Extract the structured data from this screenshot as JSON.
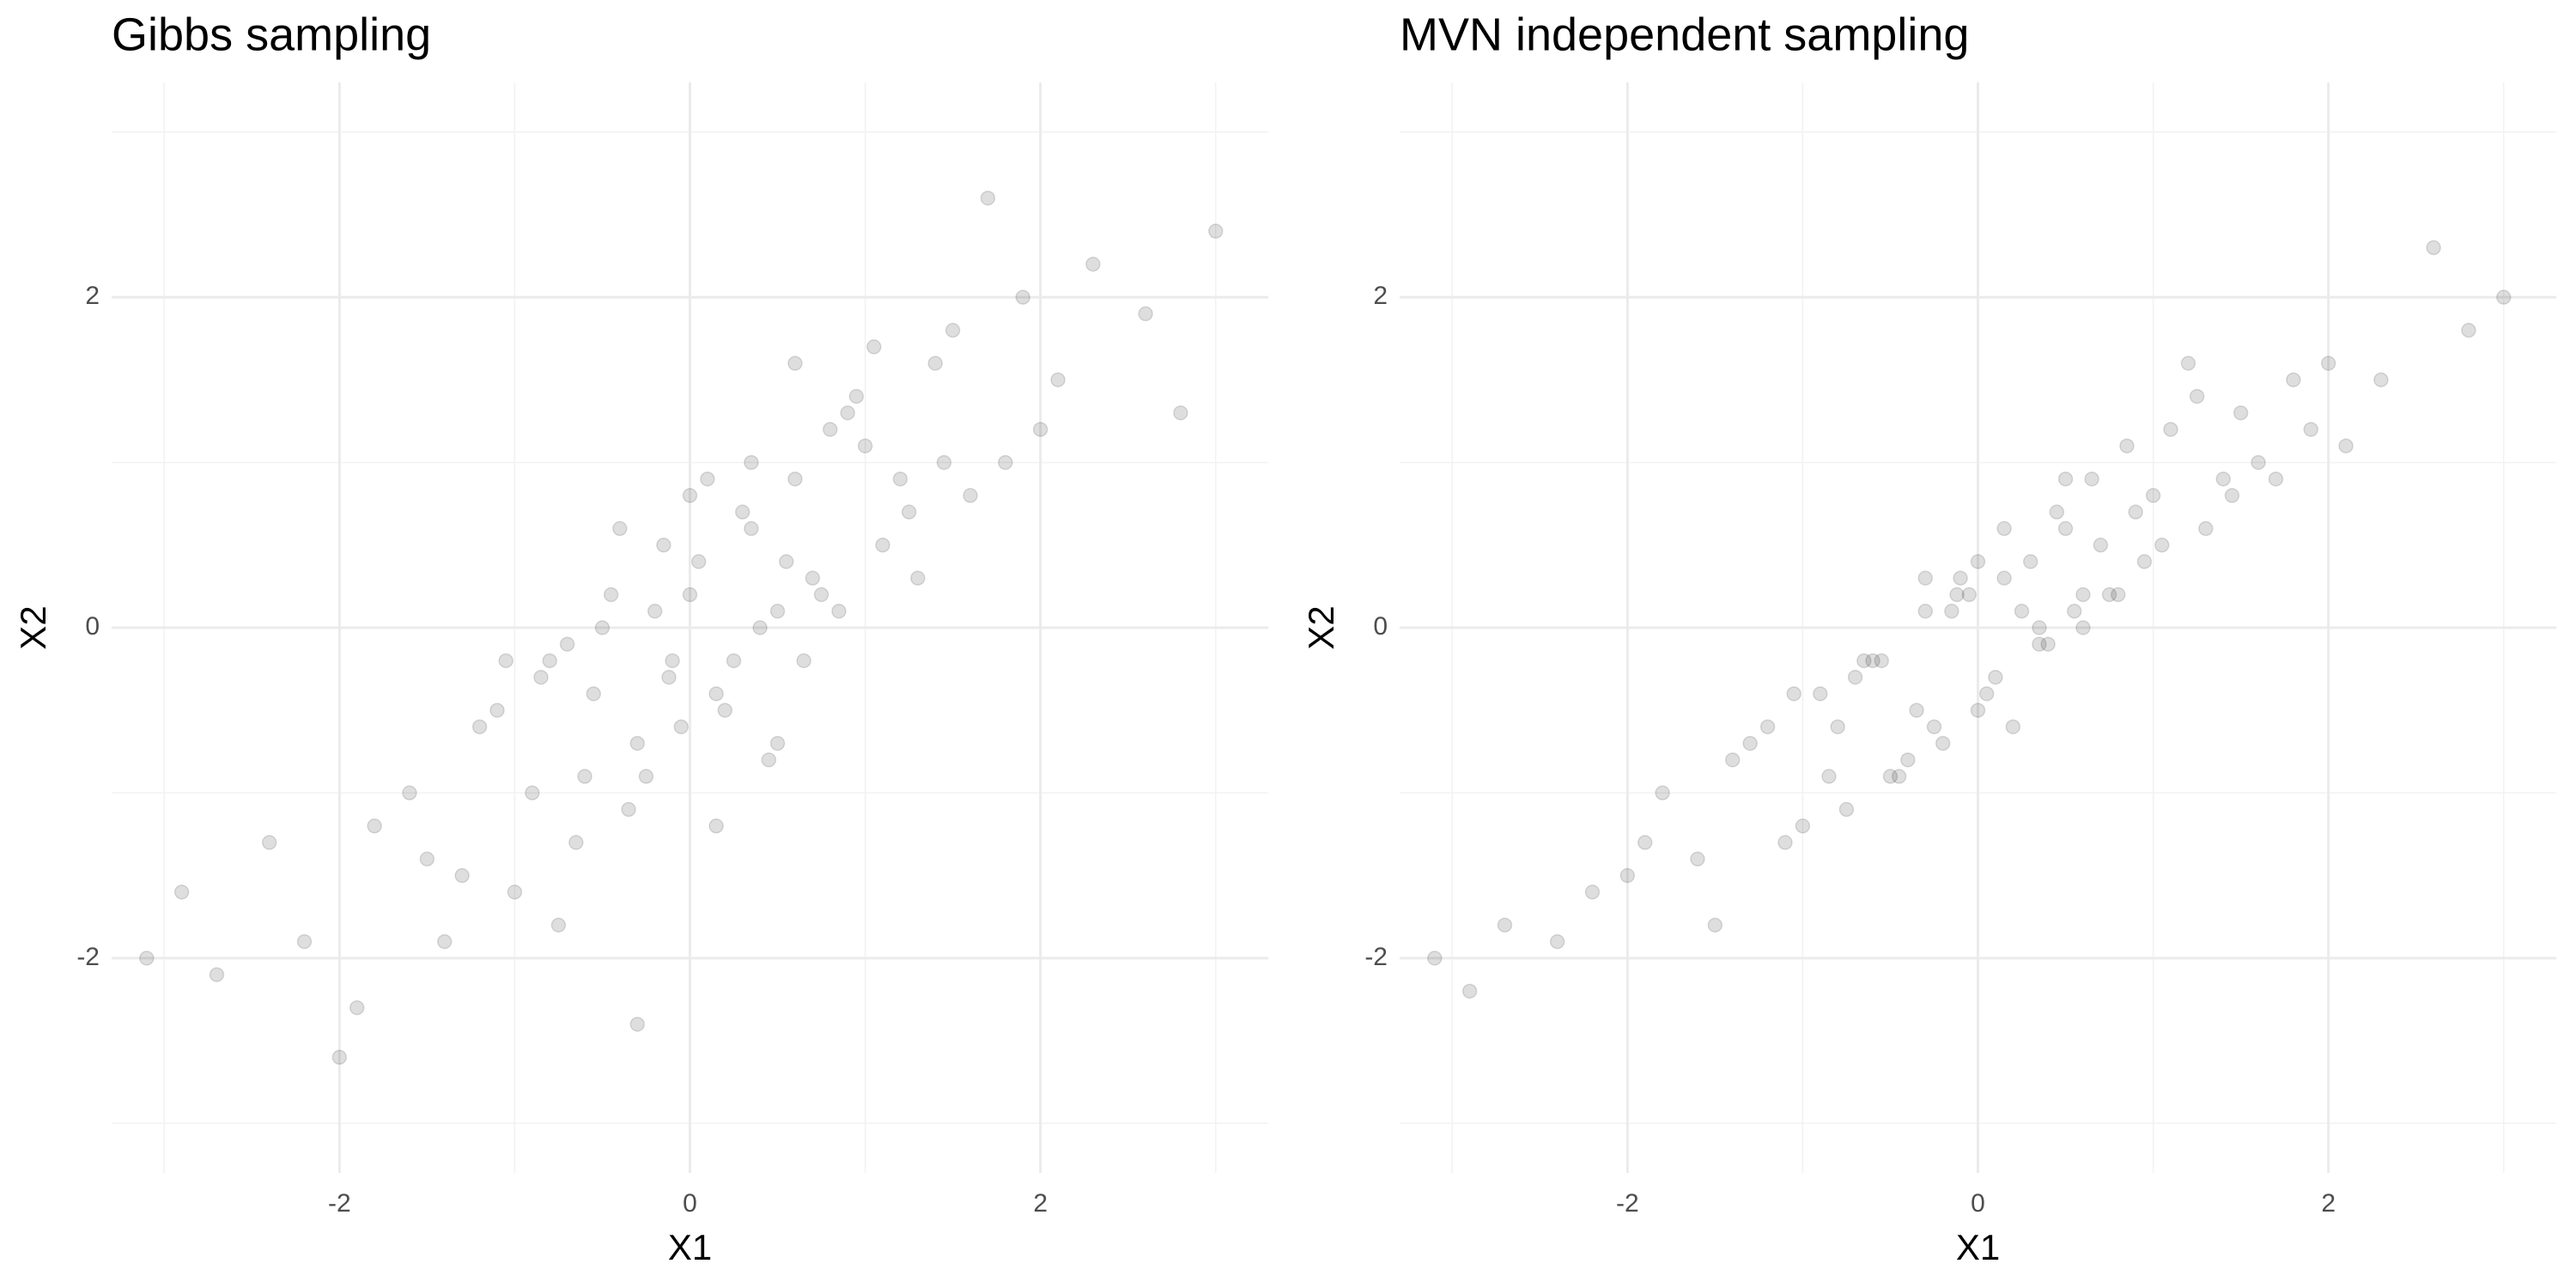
{
  "chart_data": [
    {
      "type": "scatter",
      "title": "Gibbs sampling",
      "x_label": "X1",
      "y_label": "X2",
      "color": "#000000",
      "opacity": 0.13,
      "grid": true,
      "xlim": [
        -3.3,
        3.3
      ],
      "ylim": [
        -3.3,
        3.3
      ],
      "xticks": [
        -2,
        0,
        2
      ],
      "yticks": [
        -2,
        0,
        2
      ],
      "xminor": [
        -3,
        -1,
        1,
        3
      ],
      "yminor": [
        -3,
        -1,
        1,
        3
      ],
      "x": [
        -0.12,
        0.35,
        -0.8,
        1.2,
        0.5,
        -1.5,
        0.9,
        -0.3,
        2.1,
        -2.2,
        0.05,
        1.6,
        -0.6,
        0.7,
        -1.1,
        0.25,
        -0.45,
        1.0,
        -1.8,
        0.6,
        0.15,
        -0.9,
        1.4,
        -0.2,
        2.6,
        -2.7,
        0.4,
        -0.05,
        1.1,
        -1.3,
        0.8,
        -0.7,
        0.3,
        1.8,
        -1.6,
        0.0,
        -0.35,
        0.55,
        -1.0,
        1.3,
        2.3,
        -2.4,
        0.2,
        -0.15,
        0.95,
        -0.55,
        1.5,
        -1.2,
        0.65,
        -0.25,
        3.0,
        -3.1,
        0.1,
        0.45,
        -0.85,
        1.7,
        -1.9,
        0.75,
        -0.4,
        1.25,
        -0.65,
        2.0,
        -2.0,
        0.35,
        -0.1,
        0.85,
        -1.4,
        1.05,
        -0.5,
        0.6,
        2.8,
        -2.9,
        0.15,
        -0.75,
        1.45,
        -1.05,
        0.5,
        0.0,
        -0.3,
        1.9
      ],
      "y": [
        -0.3,
        0.6,
        -0.2,
        0.9,
        0.1,
        -1.4,
        1.3,
        -0.7,
        1.5,
        -1.9,
        0.4,
        0.8,
        -0.9,
        0.3,
        -0.5,
        -0.2,
        0.2,
        1.1,
        -1.2,
        0.9,
        -0.4,
        -1.0,
        1.6,
        0.1,
        1.9,
        -2.1,
        0.0,
        -0.6,
        0.5,
        -1.5,
        1.2,
        -0.1,
        0.7,
        1.0,
        -1.0,
        0.2,
        -1.1,
        0.4,
        -1.6,
        0.3,
        2.2,
        -1.3,
        -0.5,
        0.5,
        1.4,
        -0.4,
        1.8,
        -0.6,
        -0.2,
        -0.9,
        2.4,
        -2.0,
        0.9,
        -0.8,
        -0.3,
        2.6,
        -2.3,
        0.2,
        0.6,
        0.7,
        -1.3,
        1.2,
        -2.6,
        1.0,
        -0.2,
        0.1,
        -1.9,
        1.7,
        0.0,
        1.6,
        1.3,
        -1.6,
        -1.2,
        -1.8,
        1.0,
        -0.2,
        -0.7,
        0.8,
        -2.4,
        2.0
      ]
    },
    {
      "type": "scatter",
      "title": "MVN independent sampling",
      "x_label": "X1",
      "y_label": "X2",
      "color": "#000000",
      "opacity": 0.13,
      "grid": true,
      "xlim": [
        -3.3,
        3.3
      ],
      "ylim": [
        -3.3,
        3.3
      ],
      "xticks": [
        -2,
        0,
        2
      ],
      "yticks": [
        -2,
        0,
        2
      ],
      "xminor": [
        -3,
        -1,
        1,
        3
      ],
      "yminor": [
        -3,
        -1,
        1,
        3
      ],
      "x": [
        1.9,
        -0.3,
        0.0,
        0.5,
        -1.05,
        1.45,
        -0.75,
        0.15,
        -2.9,
        2.8,
        0.6,
        -0.5,
        1.05,
        -1.4,
        0.85,
        -0.1,
        0.35,
        -2.0,
        2.0,
        -0.65,
        1.25,
        -0.4,
        0.75,
        -1.9,
        1.7,
        -0.85,
        0.45,
        0.1,
        -3.1,
        3.0,
        -0.25,
        0.65,
        -1.2,
        1.5,
        -0.55,
        0.95,
        -0.15,
        0.2,
        -2.4,
        2.3,
        1.3,
        -1.0,
        0.55,
        -0.35,
        0.0,
        -1.6,
        1.8,
        0.3,
        -0.7,
        0.8,
        -1.3,
        1.1,
        -0.05,
        0.4,
        -2.7,
        2.6,
        -0.2,
        1.4,
        -0.9,
        0.15,
        0.6,
        -1.8,
        1.0,
        -0.45,
        0.25,
        -1.1,
        0.7,
        -0.6,
        1.6,
        0.05,
        -2.2,
        2.1,
        -0.3,
        0.9,
        -1.5,
        0.5,
        1.2,
        -0.8,
        0.35,
        -0.12
      ],
      "y": [
        1.2,
        0.1,
        -0.5,
        0.6,
        -0.4,
        0.8,
        -1.1,
        0.3,
        -2.2,
        1.8,
        0.2,
        -0.9,
        0.5,
        -0.8,
        1.1,
        0.3,
        -0.1,
        -1.5,
        1.6,
        -0.2,
        1.4,
        -0.8,
        0.2,
        -1.3,
        0.9,
        -0.9,
        0.7,
        -0.3,
        -2.0,
        2.0,
        -0.6,
        0.9,
        -0.6,
        1.3,
        -0.2,
        0.4,
        0.1,
        -0.6,
        -1.9,
        1.5,
        0.6,
        -1.2,
        0.1,
        -0.5,
        0.4,
        -1.4,
        1.5,
        0.4,
        -0.3,
        0.2,
        -0.7,
        1.2,
        0.2,
        -0.1,
        -1.8,
        2.3,
        -0.7,
        0.9,
        -0.4,
        0.6,
        0.0,
        -1.0,
        0.8,
        -0.9,
        0.1,
        -1.3,
        0.5,
        -0.2,
        1.0,
        -0.4,
        -1.6,
        1.1,
        0.3,
        0.7,
        -1.8,
        0.9,
        1.6,
        -0.6,
        0.0,
        0.2
      ]
    }
  ]
}
